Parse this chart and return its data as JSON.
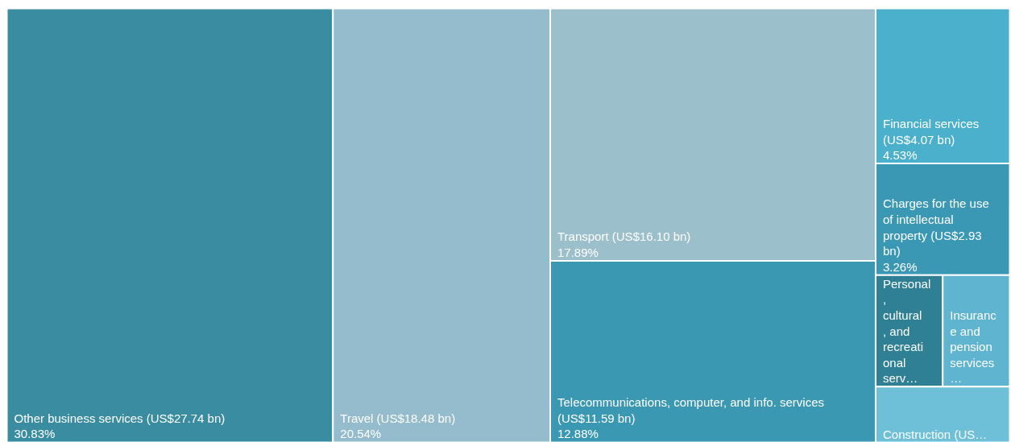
{
  "chart_data": {
    "type": "other",
    "categories": [
      "Other business services (US$27.74 bn)",
      "Travel (US$18.48 bn)",
      "Transport (US$16.10 bn)",
      "Telecommunications, computer, and info. services (US$11.59 bn)",
      "Financial services (US$4.07 bn)",
      "Charges for the use of intellectual property (US$2.93 bn)",
      "Personal, cultural, and recreational serv…",
      "Insurance and pension services…",
      "Construction (US…"
    ],
    "values": [
      30.83,
      20.54,
      17.89,
      12.88,
      4.53,
      3.26,
      null,
      null,
      null
    ],
    "value_labels": [
      "30.83%",
      "20.54%",
      "17.89%",
      "12.88%",
      "4.53%",
      "3.26%",
      null,
      null,
      null
    ],
    "colors": [
      "#3a8ca0",
      "#94bccc",
      "#9cbfcc",
      "#3b98b2",
      "#4bb0cb",
      "#3a98b5",
      "#2f8095",
      "#5fb4cf",
      "#6ebfd8"
    ]
  }
}
